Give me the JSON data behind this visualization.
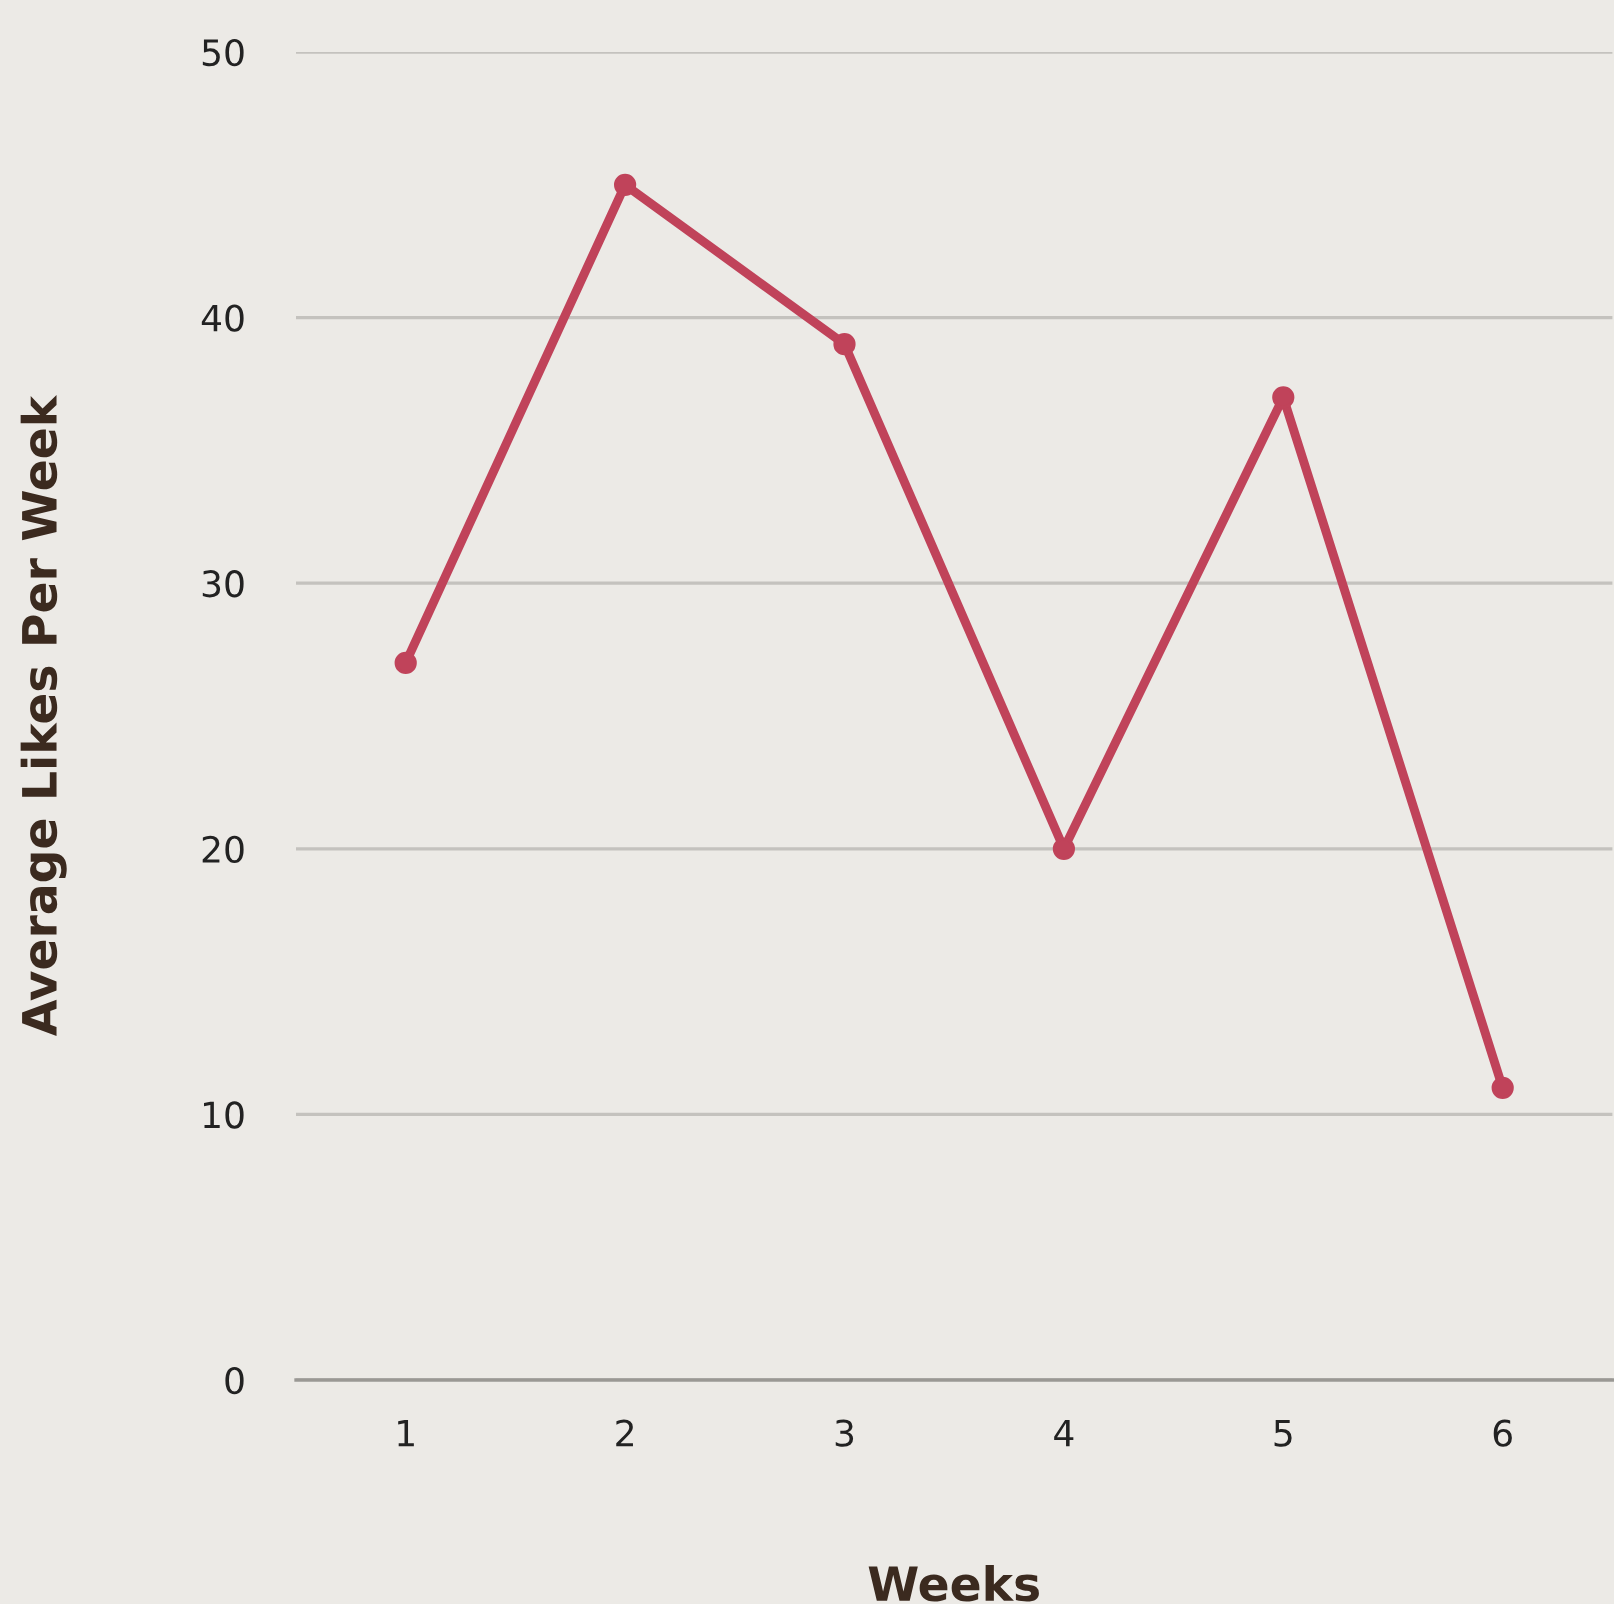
{
  "chart_data": {
    "type": "line",
    "xlabel": "Weeks",
    "ylabel": "Average Likes Per Week",
    "categories": [
      "1",
      "2",
      "3",
      "4",
      "5",
      "6"
    ],
    "series": [
      {
        "color": "#c0435a",
        "values": [
          27,
          45,
          39,
          20,
          37,
          11
        ]
      }
    ],
    "ylim": [
      0,
      50
    ],
    "yticks": [
      0,
      10,
      20,
      30,
      40,
      50
    ],
    "grid": "y",
    "marker": "circle",
    "line_style": "solid",
    "legend": false
  }
}
